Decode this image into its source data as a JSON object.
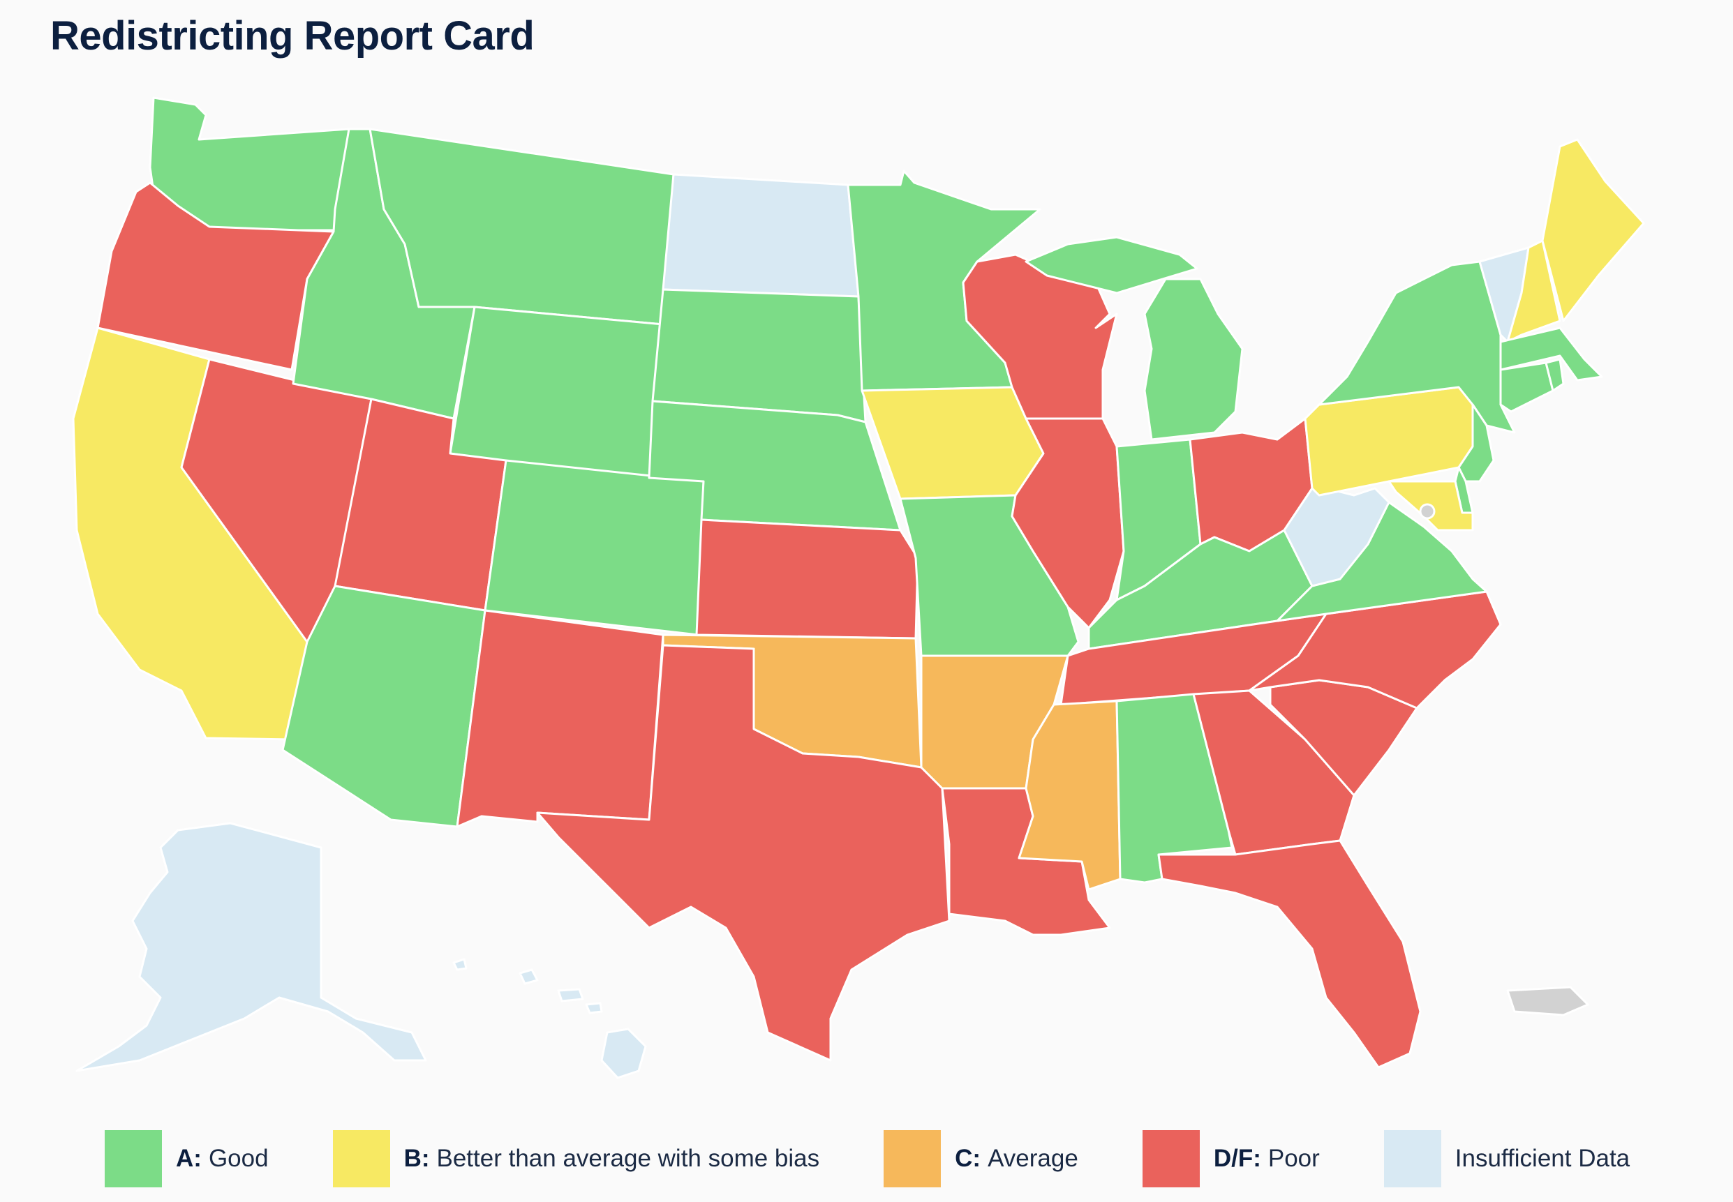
{
  "title": "Redistricting Report Card",
  "colors": {
    "A": "#7cdc87",
    "B": "#f7e963",
    "C": "#f6b85b",
    "D": "#ea625c",
    "I": "#d8e9f3",
    "N": "#d2d2d2"
  },
  "legend": [
    {
      "grade": "A:",
      "label": "Good",
      "color": "#7cdc87"
    },
    {
      "grade": "B:",
      "label": "Better than average with some bias",
      "color": "#f7e963"
    },
    {
      "grade": "C:",
      "label": "Average",
      "color": "#f6b85b"
    },
    {
      "grade": "D/F:",
      "label": "Poor",
      "color": "#ea625c"
    },
    {
      "grade": "",
      "label": "Insufficient Data",
      "color": "#d8e9f3"
    }
  ],
  "states": {
    "WA": "A",
    "OR": "D",
    "CA": "B",
    "NV": "D",
    "ID": "A",
    "MT": "A",
    "WY": "A",
    "UT": "D",
    "AZ": "A",
    "CO": "A",
    "NM": "D",
    "ND": "I",
    "SD": "A",
    "NE": "A",
    "KS": "D",
    "OK": "C",
    "TX": "D",
    "MN": "A",
    "IA": "B",
    "MO": "A",
    "AR": "C",
    "LA": "D",
    "WI": "D",
    "IL": "D",
    "MI": "A",
    "IN": "A",
    "OH": "D",
    "KY": "A",
    "TN": "D",
    "MS": "C",
    "AL": "A",
    "GA": "D",
    "FL": "D",
    "SC": "D",
    "NC": "D",
    "VA": "A",
    "WV": "I",
    "PA": "B",
    "NY": "A",
    "VT": "I",
    "NH": "B",
    "ME": "B",
    "MA": "A",
    "CT": "A",
    "RI": "A",
    "NJ": "A",
    "DE": "A",
    "MD": "B",
    "DC": "N",
    "AK": "I",
    "HI": "I",
    "PR": "N"
  }
}
